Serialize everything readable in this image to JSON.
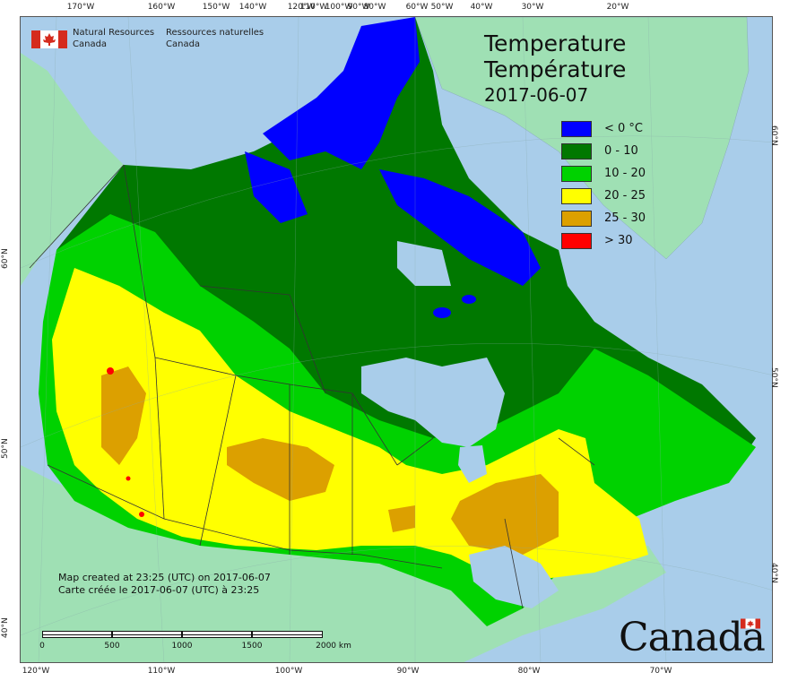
{
  "agency": {
    "name_en_line1": "Natural Resources",
    "name_en_line2": "Canada",
    "name_fr_line1": "Ressources naturelles",
    "name_fr_line2": "Canada",
    "flag_icon": "canada-flag-icon"
  },
  "title": {
    "en": "Temperature",
    "fr": "Température",
    "date": "2017-06-07"
  },
  "legend": [
    {
      "label": "< 0 °C",
      "color": "#0000ff"
    },
    {
      "label": "0 - 10",
      "color": "#007800"
    },
    {
      "label": "10 - 20",
      "color": "#00d200"
    },
    {
      "label": "20 - 25",
      "color": "#ffff00"
    },
    {
      "label": "25 - 30",
      "color": "#dca000"
    },
    {
      "label": "> 30",
      "color": "#ff0000"
    }
  ],
  "credit": {
    "en": "Map created at 23:25 (UTC) on 2017-06-07",
    "fr": "Carte créée le 2017-06-07 (UTC) à 23:25"
  },
  "scale": {
    "labels": [
      "0",
      "500",
      "1000",
      "1500",
      "2000  km"
    ]
  },
  "graticule": {
    "top": [
      "170°W",
      "160°W",
      "150°W",
      "140°W",
      "120°W",
      "110°W",
      "100°W",
      "90°W",
      "80°W",
      "60°W",
      "50°W",
      "40°W",
      "30°W",
      "20°W"
    ],
    "bottom": [
      "120°W",
      "110°W",
      "100°W",
      "90°W",
      "80°W",
      "70°W"
    ],
    "left": [
      "60°N",
      "50°N",
      "40°N"
    ],
    "right": [
      "60°N",
      "50°N",
      "40°N"
    ]
  },
  "wordmark": "Canada",
  "colors": {
    "ocean": "#a9cdea",
    "foreign_land": "#9fe0b4",
    "borders": "#333333"
  }
}
